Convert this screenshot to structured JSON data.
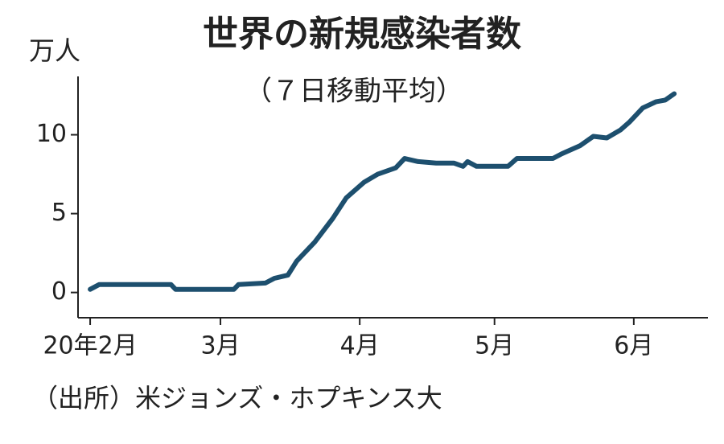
{
  "chart_data": {
    "type": "line",
    "title": "世界の新規感染者数",
    "subtitle": "（７日移動平均）",
    "y_label": "万人",
    "source": "（出所）米ジョンズ・ホプキンス大",
    "xlim": [
      -2.7,
      137.5
    ],
    "xticks": [
      {
        "value": 0,
        "label": "20年2月"
      },
      {
        "value": 29,
        "label": "3月"
      },
      {
        "value": 60,
        "label": "4月"
      },
      {
        "value": 90,
        "label": "5月"
      },
      {
        "value": 121,
        "label": "6月"
      }
    ],
    "ylim": [
      -1.6,
      13.7
    ],
    "yticks": [
      0,
      5,
      10
    ],
    "series": [
      {
        "color": "#1d4f6e",
        "x": [
          0,
          2,
          5,
          10,
          15,
          18,
          19,
          25,
          32,
          33,
          39,
          41,
          44,
          46,
          50,
          54,
          57,
          61,
          64,
          68,
          70,
          73,
          77,
          81,
          83,
          84,
          86,
          93,
          95,
          103,
          105,
          109,
          112,
          115,
          118,
          120,
          123,
          126,
          128,
          130
        ],
        "values": [
          0.2,
          0.5,
          0.5,
          0.5,
          0.5,
          0.5,
          0.2,
          0.2,
          0.2,
          0.5,
          0.6,
          0.9,
          1.1,
          2.0,
          3.2,
          4.7,
          6.0,
          7.0,
          7.5,
          7.9,
          8.5,
          8.3,
          8.2,
          8.2,
          8.0,
          8.3,
          8.0,
          8.0,
          8.5,
          8.5,
          8.8,
          9.3,
          9.9,
          9.8,
          10.3,
          10.8,
          11.7,
          12.1,
          12.2,
          12.6
        ]
      }
    ]
  }
}
